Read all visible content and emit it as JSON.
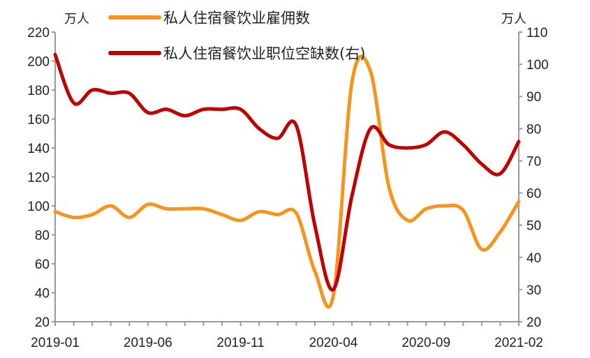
{
  "chart_data": {
    "type": "line",
    "left_unit": "万人",
    "right_unit": "万人",
    "y_left": {
      "min": 20,
      "max": 220,
      "ticks": [
        20,
        40,
        60,
        80,
        100,
        120,
        140,
        160,
        180,
        200,
        220
      ]
    },
    "y_right": {
      "min": 20,
      "max": 110,
      "ticks": [
        20,
        30,
        40,
        50,
        60,
        70,
        80,
        90,
        100,
        110
      ]
    },
    "x_tick_labels": [
      "2019-01",
      "2019-06",
      "2019-11",
      "2020-04",
      "2020-09",
      "2021-02"
    ],
    "x": [
      "2019-01",
      "2019-02",
      "2019-03",
      "2019-04",
      "2019-05",
      "2019-06",
      "2019-07",
      "2019-08",
      "2019-09",
      "2019-10",
      "2019-11",
      "2019-12",
      "2020-01",
      "2020-02",
      "2020-03",
      "2020-04",
      "2020-05",
      "2020-06",
      "2020-07",
      "2020-08",
      "2020-09",
      "2020-10",
      "2020-11",
      "2020-12",
      "2021-01",
      "2021-02"
    ],
    "series": [
      {
        "name": "私人住宿餐饮业雇佣数",
        "axis": "left",
        "color": "#F7941D",
        "values": [
          96,
          92,
          94,
          100,
          92,
          101,
          98,
          98,
          98,
          94,
          90,
          96,
          94,
          95,
          55,
          38,
          185,
          193,
          113,
          90,
          98,
          100,
          97,
          70,
          82,
          103
        ]
      },
      {
        "name": "私人住宿餐饮业职位空缺数(右)",
        "axis": "right",
        "color": "#C00000",
        "values": [
          103,
          88,
          92,
          91,
          91,
          85,
          86,
          84,
          86,
          86,
          86,
          80,
          77,
          81,
          50,
          30,
          59,
          80,
          75,
          74,
          75,
          79,
          75,
          69,
          66,
          76
        ]
      }
    ],
    "grid": false,
    "legend_position": "top-center"
  }
}
